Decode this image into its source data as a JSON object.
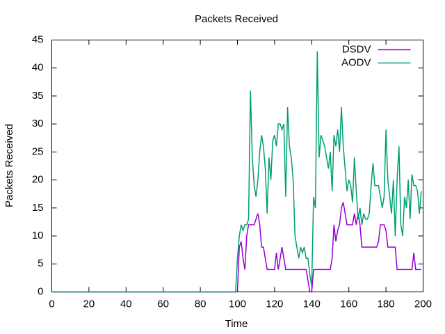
{
  "chart_data": {
    "type": "line",
    "title": "Packets Received",
    "x_label": "Time",
    "y_label": "Packets Received",
    "x": [
      0,
      99,
      100,
      101,
      102,
      103,
      104,
      105,
      106,
      107,
      108,
      109,
      110,
      111,
      112,
      113,
      114,
      115,
      116,
      117,
      118,
      119,
      120,
      121,
      122,
      123,
      124,
      125,
      126,
      127,
      128,
      129,
      130,
      131,
      132,
      133,
      134,
      135,
      136,
      137,
      138,
      139,
      140,
      141,
      142,
      143,
      144,
      145,
      146,
      147,
      148,
      149,
      150,
      151,
      152,
      153,
      154,
      155,
      156,
      157,
      158,
      159,
      160,
      161,
      162,
      163,
      164,
      165,
      166,
      167,
      168,
      169,
      170,
      171,
      172,
      173,
      174,
      175,
      176,
      177,
      178,
      179,
      180,
      181,
      182,
      183,
      184,
      185,
      186,
      187,
      188,
      189,
      190,
      191,
      192,
      193,
      194,
      195,
      196,
      197,
      198,
      199
    ],
    "series": [
      {
        "name": "DSDV",
        "color": "#9400d3",
        "values": [
          0,
          0,
          0,
          8,
          9,
          6,
          4,
          10,
          12,
          12,
          12,
          12,
          13,
          14,
          12,
          8,
          8,
          6,
          4,
          4,
          4,
          4,
          4,
          7,
          4,
          6,
          8,
          6,
          4,
          4,
          4,
          4,
          4,
          4,
          4,
          4,
          4,
          4,
          4,
          4,
          2,
          0,
          0,
          4,
          4,
          4,
          4,
          4,
          4,
          4,
          4,
          4,
          4,
          6,
          12,
          9,
          11,
          12,
          15,
          16,
          14,
          12,
          12,
          12,
          12,
          14,
          12,
          14,
          12,
          8,
          8,
          8,
          8,
          8,
          8,
          8,
          8,
          8,
          9,
          12,
          12,
          12,
          11,
          8,
          8,
          8,
          8,
          8,
          4,
          4,
          4,
          4,
          4,
          4,
          4,
          4,
          4,
          7,
          4,
          4,
          4,
          4
        ]
      },
      {
        "name": "AODV",
        "color": "#009e73",
        "values": [
          0,
          0,
          6,
          10,
          12,
          11,
          12,
          12,
          13,
          36,
          24,
          19,
          17,
          20,
          25,
          28,
          26,
          22,
          14,
          24,
          20,
          27,
          28,
          26,
          30,
          30,
          29,
          30,
          17,
          33,
          26,
          24,
          20,
          10,
          8,
          6,
          8,
          7,
          8,
          6,
          6,
          3,
          1,
          17,
          15,
          43,
          24,
          28,
          27,
          26,
          24,
          22,
          25,
          18,
          28,
          26,
          29,
          25,
          33,
          26,
          22,
          18,
          20,
          19,
          16,
          24,
          18,
          13,
          15,
          12,
          14,
          13,
          13,
          14,
          19,
          23,
          19,
          19,
          19,
          17,
          15,
          17,
          29,
          20,
          17,
          14,
          20,
          10,
          20,
          26,
          12,
          10,
          17,
          15,
          20,
          13,
          21,
          19,
          19,
          18,
          14,
          18
        ]
      }
    ],
    "xlim": [
      0,
      200
    ],
    "xticks": [
      0,
      20,
      40,
      60,
      80,
      100,
      120,
      140,
      160,
      180,
      200
    ],
    "ylim": [
      0,
      45
    ],
    "yticks": [
      0,
      5,
      10,
      15,
      20,
      25,
      30,
      35,
      40,
      45
    ],
    "legend": "top-right",
    "grid": false
  }
}
